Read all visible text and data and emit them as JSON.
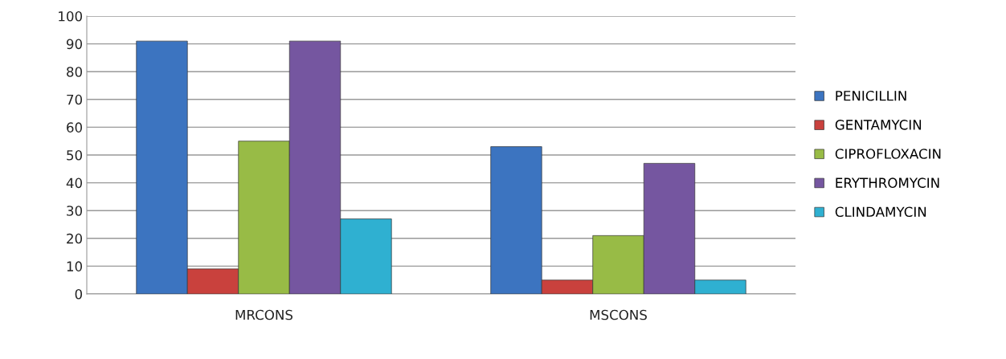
{
  "chart_data": {
    "type": "bar",
    "categories": [
      "MRCONS",
      "MSCONS"
    ],
    "series": [
      {
        "name": "PENICILLIN",
        "color": "#3c74c0",
        "values": [
          91,
          53
        ]
      },
      {
        "name": "GENTAMYCIN",
        "color": "#c9413d",
        "values": [
          9,
          5
        ]
      },
      {
        "name": "CIPROFLOXACIN",
        "color": "#98bb46",
        "values": [
          55,
          21
        ]
      },
      {
        "name": "ERYTHROMYCIN",
        "color": "#7556a0",
        "values": [
          91,
          47
        ]
      },
      {
        "name": "CLINDAMYCIN",
        "color": "#2fb0d1",
        "values": [
          27,
          5
        ]
      }
    ],
    "ylim": [
      0,
      100
    ],
    "yticks": [
      0,
      10,
      20,
      30,
      40,
      50,
      60,
      70,
      80,
      90,
      100
    ],
    "grid": "y",
    "legend": "right"
  }
}
